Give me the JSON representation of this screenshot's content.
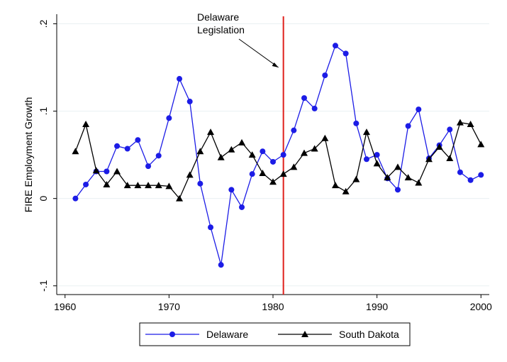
{
  "chart_data": {
    "type": "line",
    "y_label": "FIRE Employment Growth",
    "annotation": [
      "Delaware",
      "Legislation"
    ],
    "vline": 1981,
    "vline_color": "#e0201c",
    "x": [
      1961,
      1962,
      1963,
      1964,
      1965,
      1966,
      1967,
      1968,
      1969,
      1970,
      1971,
      1972,
      1973,
      1974,
      1975,
      1976,
      1977,
      1978,
      1979,
      1980,
      1981,
      1982,
      1983,
      1984,
      1985,
      1986,
      1987,
      1988,
      1989,
      1990,
      1991,
      1992,
      1993,
      1994,
      1995,
      1996,
      1997,
      1998,
      1999,
      2000
    ],
    "series": [
      {
        "name": "Delaware",
        "color": "#1c1ce6",
        "marker": "circle",
        "values": [
          0,
          0.016,
          0.031,
          0.031,
          0.06,
          0.057,
          0.067,
          0.037,
          0.049,
          0.092,
          0.137,
          0.111,
          0.017,
          -0.033,
          -0.076,
          0.01,
          -0.01,
          0.028,
          0.054,
          0.042,
          0.05,
          0.078,
          0.115,
          0.103,
          0.141,
          0.175,
          0.166,
          0.086,
          0.045,
          0.05,
          0.023,
          0.01,
          0.083,
          0.102,
          0.046,
          0.061,
          0.079,
          0.03,
          0.021,
          0.027
        ]
      },
      {
        "name": "South Dakota",
        "color": "#000000",
        "marker": "triangle",
        "values": [
          0.054,
          0.085,
          0.032,
          0.016,
          0.031,
          0.015,
          0.015,
          0.015,
          0.015,
          0.014,
          0,
          0.027,
          0.054,
          0.076,
          0.047,
          0.056,
          0.064,
          0.05,
          0.029,
          0.019,
          0.028,
          0.036,
          0.052,
          0.057,
          0.069,
          0.015,
          0.008,
          0.022,
          0.076,
          0.04,
          0.024,
          0.036,
          0.024,
          0.018,
          0.045,
          0.059,
          0.046,
          0.087,
          0.085,
          0.062
        ]
      }
    ],
    "xlim": [
      1959.2,
      2000.8
    ],
    "xticks": [
      1960,
      1970,
      1980,
      1990,
      2000
    ],
    "ylim": [
      -0.11,
      0.211
    ],
    "yticks": [
      {
        "value": -0.1,
        "label": "-.1"
      },
      0,
      {
        "value": 0.1,
        "label": ".1"
      },
      {
        "value": 0.2,
        "label": ".2"
      }
    ],
    "grid": true,
    "legend": "bottom"
  }
}
